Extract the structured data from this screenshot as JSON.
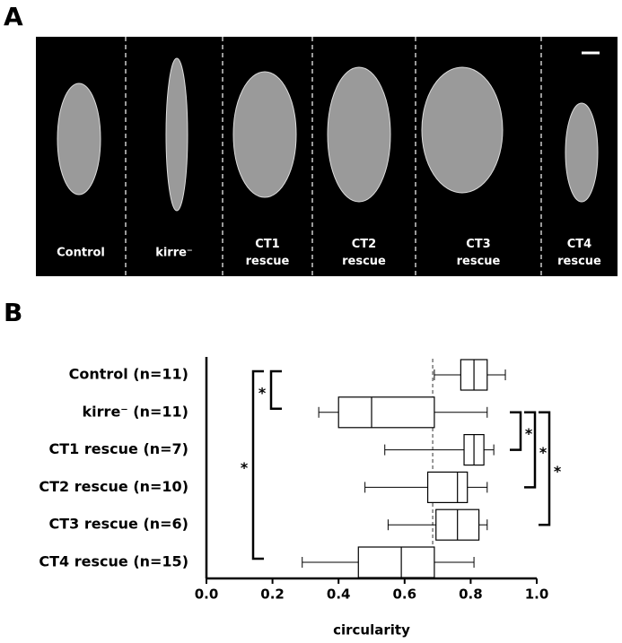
{
  "panel_a": {
    "label": "A",
    "panels": [
      [
        "Control"
      ],
      [
        "kirre⁻"
      ],
      [
        "CT1",
        "rescue"
      ],
      [
        "CT2",
        "rescue"
      ],
      [
        "CT3",
        "rescue"
      ],
      [
        "CT4",
        "rescue"
      ]
    ]
  },
  "chart_data": {
    "type": "box",
    "panel_label": "B",
    "orientation": "horizontal",
    "categories": [
      "Control (n=11)",
      "kirre⁻ (n=11)",
      "CT1 rescue (n=7)",
      "CT2 rescue (n=10)",
      "CT3 rescue (n=6)",
      "CT4 rescue (n=15)"
    ],
    "min": [
      0.69,
      0.34,
      0.54,
      0.48,
      0.55,
      0.29
    ],
    "q1": [
      0.77,
      0.4,
      0.78,
      0.67,
      0.695,
      0.46
    ],
    "median": [
      0.81,
      0.5,
      0.81,
      0.76,
      0.76,
      0.59
    ],
    "q3": [
      0.85,
      0.69,
      0.84,
      0.79,
      0.825,
      0.69
    ],
    "max": [
      0.905,
      0.85,
      0.87,
      0.85,
      0.85,
      0.81
    ],
    "reference_line": 0.685,
    "xlabel": "circularity",
    "xlim": [
      0,
      1
    ],
    "xticks": [
      {
        "value": 0,
        "label": "0.0"
      },
      0.2,
      0.4,
      0.6,
      0.8,
      {
        "value": 1,
        "label": "1.0"
      }
    ],
    "significance": [
      {
        "from": 0,
        "to": 1,
        "side": "left",
        "label": "*"
      },
      {
        "from": 0,
        "to": 5,
        "side": "left",
        "label": "*"
      },
      {
        "from": 1,
        "to": 2,
        "side": "right",
        "label": "*"
      },
      {
        "from": 1,
        "to": 3,
        "side": "right",
        "label": "*"
      },
      {
        "from": 1,
        "to": 4,
        "side": "right",
        "label": "*"
      }
    ]
  }
}
